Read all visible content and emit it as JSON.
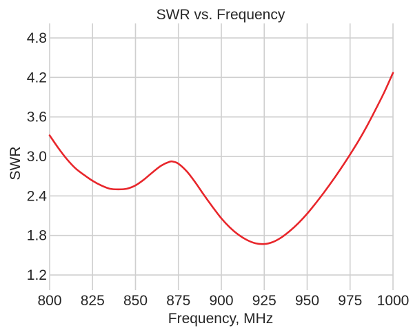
{
  "chart_data": {
    "type": "line",
    "title": "SWR vs. Frequency",
    "xlabel": "Frequency, MHz",
    "ylabel": "SWR",
    "xlim": [
      800,
      1000
    ],
    "ylim": [
      0.97,
      5.02
    ],
    "xticks": [
      "800",
      "825",
      "850",
      "875",
      "900",
      "925",
      "950",
      "975",
      "1000"
    ],
    "yticks": [
      "1.2",
      "1.8",
      "2.4",
      "3.0",
      "3.6",
      "4.2",
      "4.8"
    ],
    "grid": true,
    "colors": {
      "line": "#e8262b",
      "grid": "#cfcfcf",
      "text": "#262626"
    },
    "series": [
      {
        "x": [
          800,
          805,
          810,
          815,
          820,
          825,
          830,
          835,
          840,
          845,
          850,
          855,
          860,
          865,
          870,
          872,
          875,
          880,
          885,
          890,
          895,
          900,
          905,
          910,
          915,
          920,
          925,
          930,
          935,
          940,
          945,
          950,
          955,
          960,
          965,
          970,
          975,
          980,
          985,
          990,
          995,
          1000
        ],
        "y": [
          3.32,
          3.13,
          2.96,
          2.82,
          2.72,
          2.63,
          2.56,
          2.51,
          2.5,
          2.51,
          2.56,
          2.65,
          2.76,
          2.86,
          2.92,
          2.92,
          2.89,
          2.77,
          2.6,
          2.41,
          2.23,
          2.06,
          1.92,
          1.81,
          1.73,
          1.68,
          1.67,
          1.7,
          1.77,
          1.87,
          1.99,
          2.13,
          2.29,
          2.46,
          2.64,
          2.83,
          3.03,
          3.24,
          3.47,
          3.72,
          3.98,
          4.27
        ]
      }
    ]
  }
}
